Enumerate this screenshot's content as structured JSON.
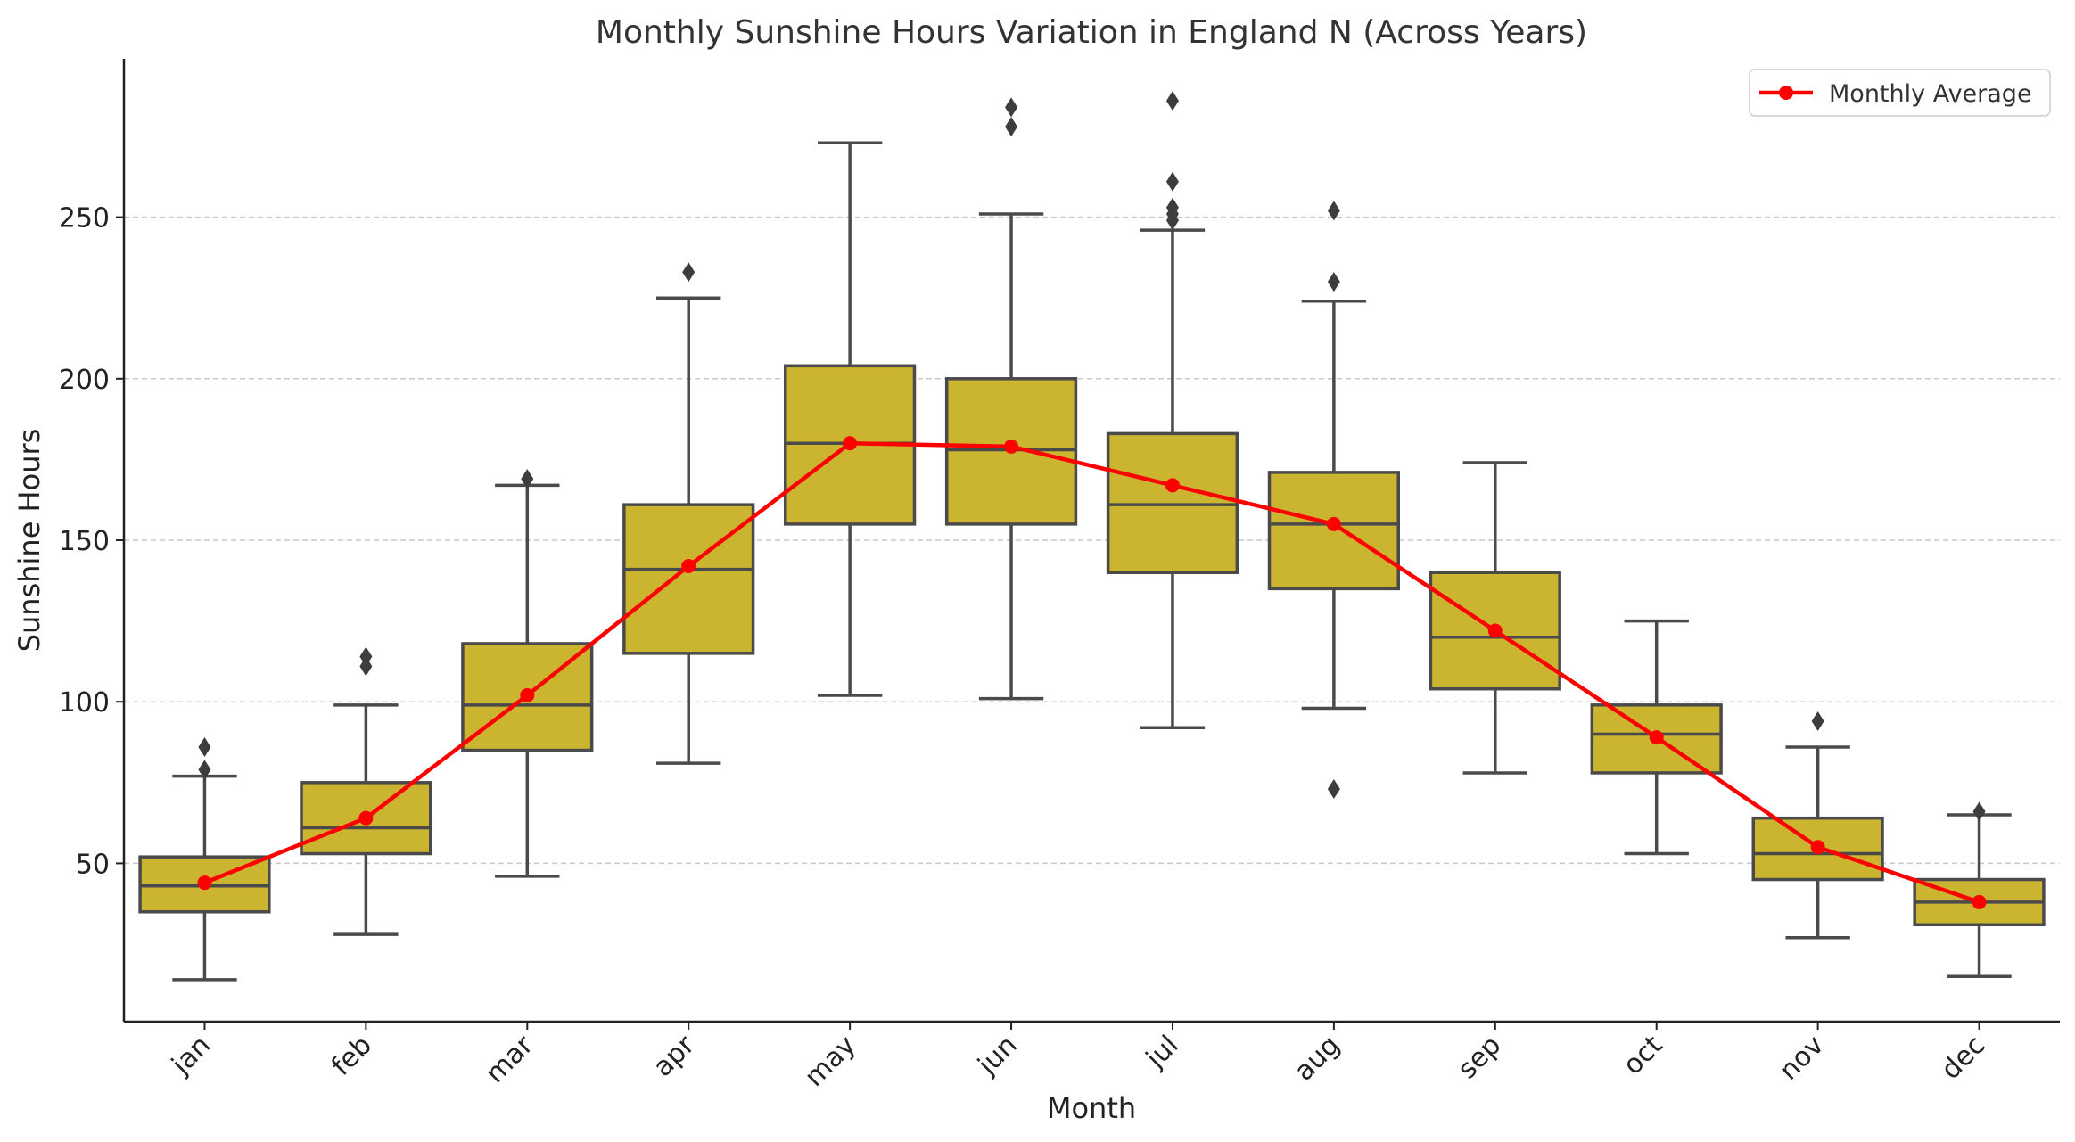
{
  "chart_data": {
    "type": "box",
    "title": "Monthly Sunshine Hours Variation in England N (Across Years)",
    "xlabel": "Month",
    "ylabel": "Sunshine Hours",
    "ylim": [
      1,
      299
    ],
    "yticks": [
      50,
      100,
      150,
      200,
      250
    ],
    "grid": "horizontal-dashed",
    "legend_position": "top-right",
    "colors": {
      "box_fill": "#cbb42f",
      "box_edge": "#4a4a4a",
      "average_line": "#ff0000",
      "grid": "#c8c8c8"
    },
    "categories": [
      "jan",
      "feb",
      "mar",
      "apr",
      "may",
      "jun",
      "jul",
      "aug",
      "sep",
      "oct",
      "nov",
      "dec"
    ],
    "boxes": [
      {
        "whislo": 14,
        "q1": 35,
        "med": 43,
        "q3": 52,
        "whishi": 77,
        "fliers": [
          79,
          86
        ]
      },
      {
        "whislo": 28,
        "q1": 53,
        "med": 61,
        "q3": 75,
        "whishi": 99,
        "fliers": [
          111,
          114
        ]
      },
      {
        "whislo": 46,
        "q1": 85,
        "med": 99,
        "q3": 118,
        "whishi": 167,
        "fliers": [
          169
        ]
      },
      {
        "whislo": 81,
        "q1": 115,
        "med": 141,
        "q3": 161,
        "whishi": 225,
        "fliers": [
          233
        ]
      },
      {
        "whislo": 102,
        "q1": 155,
        "med": 180,
        "q3": 204,
        "whishi": 273,
        "fliers": []
      },
      {
        "whislo": 101,
        "q1": 155,
        "med": 178,
        "q3": 200,
        "whishi": 251,
        "fliers": [
          278,
          284
        ]
      },
      {
        "whislo": 92,
        "q1": 140,
        "med": 161,
        "q3": 183,
        "whishi": 246,
        "fliers": [
          249,
          251,
          253,
          261,
          286
        ]
      },
      {
        "whislo": 98,
        "q1": 135,
        "med": 155,
        "q3": 171,
        "whishi": 224,
        "fliers": [
          73,
          230,
          252
        ]
      },
      {
        "whislo": 78,
        "q1": 104,
        "med": 120,
        "q3": 140,
        "whishi": 174,
        "fliers": []
      },
      {
        "whislo": 53,
        "q1": 78,
        "med": 90,
        "q3": 99,
        "whishi": 125,
        "fliers": []
      },
      {
        "whislo": 27,
        "q1": 45,
        "med": 53,
        "q3": 64,
        "whishi": 86,
        "fliers": [
          94
        ]
      },
      {
        "whislo": 15,
        "q1": 31,
        "med": 38,
        "q3": 45,
        "whishi": 65,
        "fliers": [
          66
        ]
      }
    ],
    "series": [
      {
        "name": "Monthly Average",
        "type": "line",
        "values": [
          44,
          64,
          102,
          142,
          180,
          179,
          167,
          155,
          122,
          89,
          55,
          38
        ]
      }
    ]
  }
}
